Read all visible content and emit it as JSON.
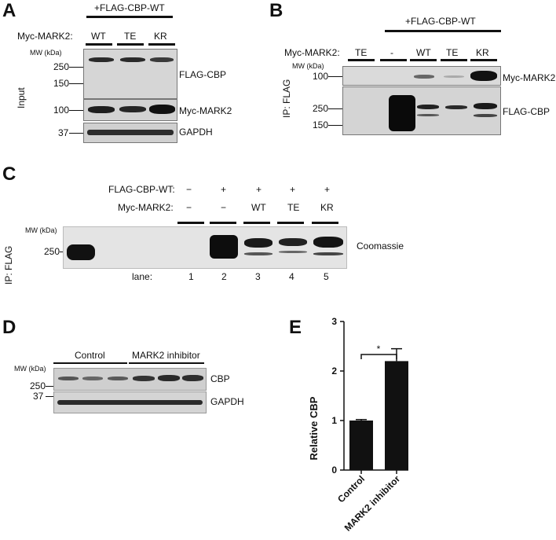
{
  "panel_a": {
    "letter": "A",
    "header": "+FLAG-CBP-WT",
    "row_label": "Myc-MARK2:",
    "lanes": [
      "WT",
      "TE",
      "KR"
    ],
    "mw_title": "MW (kDa)",
    "mw": [
      "250",
      "150",
      "100",
      "37"
    ],
    "side": "Input",
    "blots": [
      "FLAG-CBP",
      "Myc-MARK2",
      "GAPDH"
    ]
  },
  "panel_b": {
    "letter": "B",
    "header": "+FLAG-CBP-WT",
    "row_label": "Myc-MARK2:",
    "lanes": [
      "TE",
      "-",
      "WT",
      "TE",
      "KR"
    ],
    "mw_title": "MW (kDa)",
    "mw": [
      "100",
      "250",
      "150"
    ],
    "side": "IP: FLAG",
    "blots": [
      "Myc-MARK2",
      "FLAG-CBP"
    ]
  },
  "panel_c": {
    "letter": "C",
    "row1_label": "FLAG-CBP-WT:",
    "row1": [
      "−",
      "+",
      "+",
      "+",
      "+"
    ],
    "row2_label": "Myc-MARK2:",
    "row2": [
      "−",
      "−",
      "WT",
      "TE",
      "KR"
    ],
    "mw_title": "MW (kDa)",
    "mw": [
      "250"
    ],
    "side": "IP: FLAG",
    "blot": "Coomassie",
    "lane_label": "lane:",
    "lane_numbers": [
      "1",
      "2",
      "3",
      "4",
      "5"
    ]
  },
  "panel_d": {
    "letter": "D",
    "groups": [
      "Control",
      "MARK2 inhibitor"
    ],
    "mw_title": "MW (kDa)",
    "mw": [
      "250",
      "37"
    ],
    "blots": [
      "CBP",
      "GAPDH"
    ]
  },
  "panel_e": {
    "letter": "E",
    "significance": "*",
    "chart_data": {
      "type": "bar",
      "categories": [
        "Control",
        "MARK2 inhibitor"
      ],
      "values": [
        1.0,
        2.2
      ],
      "errors": [
        0.02,
        0.25
      ],
      "ylabel": "Relative CBP",
      "ylim": [
        0,
        3
      ],
      "yticks": [
        0,
        1,
        2,
        3
      ],
      "bar_color": "#111111",
      "grid": false
    }
  }
}
